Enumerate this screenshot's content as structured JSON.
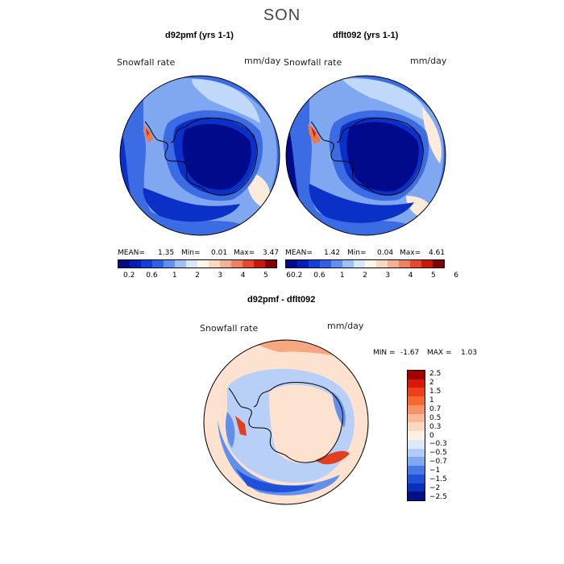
{
  "figure": {
    "season": "SON"
  },
  "panels": [
    {
      "title": "d92pmf (yrs 1-1)",
      "variable": "Snowfall rate",
      "units": "mm/day",
      "stats": {
        "mean_label": "MEAN=",
        "mean": "1.35",
        "min_label": "Min=",
        "min": "0.01",
        "max_label": "Max=",
        "max": "3.47"
      }
    },
    {
      "title": "dflt092 (yrs 1-1)",
      "variable": "Snowfall rate",
      "units": "mm/day",
      "stats": {
        "mean_label": "MEAN=",
        "mean": "1.42",
        "min_label": "Min=",
        "min": "0.04",
        "max_label": "Max=",
        "max": "4.61"
      }
    },
    {
      "title": "d92pmf - dflt092",
      "variable": "Snowfall rate",
      "units": "mm/day",
      "stats": {
        "min_label": "MIN =",
        "min": "-1.67",
        "max_label": "MAX =",
        "max": "1.03"
      }
    }
  ],
  "colorbar_top": {
    "ticks": [
      "0.2",
      "0.6",
      "1",
      "2",
      "3",
      "4",
      "5",
      "6"
    ],
    "colors": [
      "#000a8a",
      "#0020b8",
      "#1040d8",
      "#3060e8",
      "#6090f0",
      "#a0c0f8",
      "#d8e8fc",
      "#fff6e8",
      "#fcd8c0",
      "#f8b090",
      "#f08060",
      "#e84830",
      "#c81808",
      "#800000"
    ]
  },
  "colorbar_diff": {
    "ticks": [
      "2.5",
      "2",
      "1.5",
      "1",
      "0.7",
      "0.5",
      "0.3",
      "0",
      "−0.3",
      "−0.5",
      "−0.7",
      "−1",
      "−1.5",
      "−2",
      "−2.5"
    ],
    "colors": [
      "#a00000",
      "#d81808",
      "#f04018",
      "#f86830",
      "#f89068",
      "#fcb898",
      "#fcd8c0",
      "#fff0e4",
      "#dce8fc",
      "#b0ccf8",
      "#80a8f0",
      "#4878e8",
      "#2050d8",
      "#0830b8",
      "#00108a"
    ]
  },
  "palette": {
    "deep": "#000a8a",
    "dark": "#0a30c8",
    "mid": "#3c6ce4",
    "light": "#80a8f0",
    "pale": "#c0d8fa",
    "cream": "#fdebdc",
    "peach": "#f8b890",
    "orange": "#f07840",
    "red": "#d82010",
    "dneg3": "#2050d8",
    "dneg2": "#6090ec",
    "dneg1": "#b8d0f8",
    "dpos1": "#fde2d0",
    "dpos2": "#f8a880",
    "dpos3": "#e04020"
  }
}
